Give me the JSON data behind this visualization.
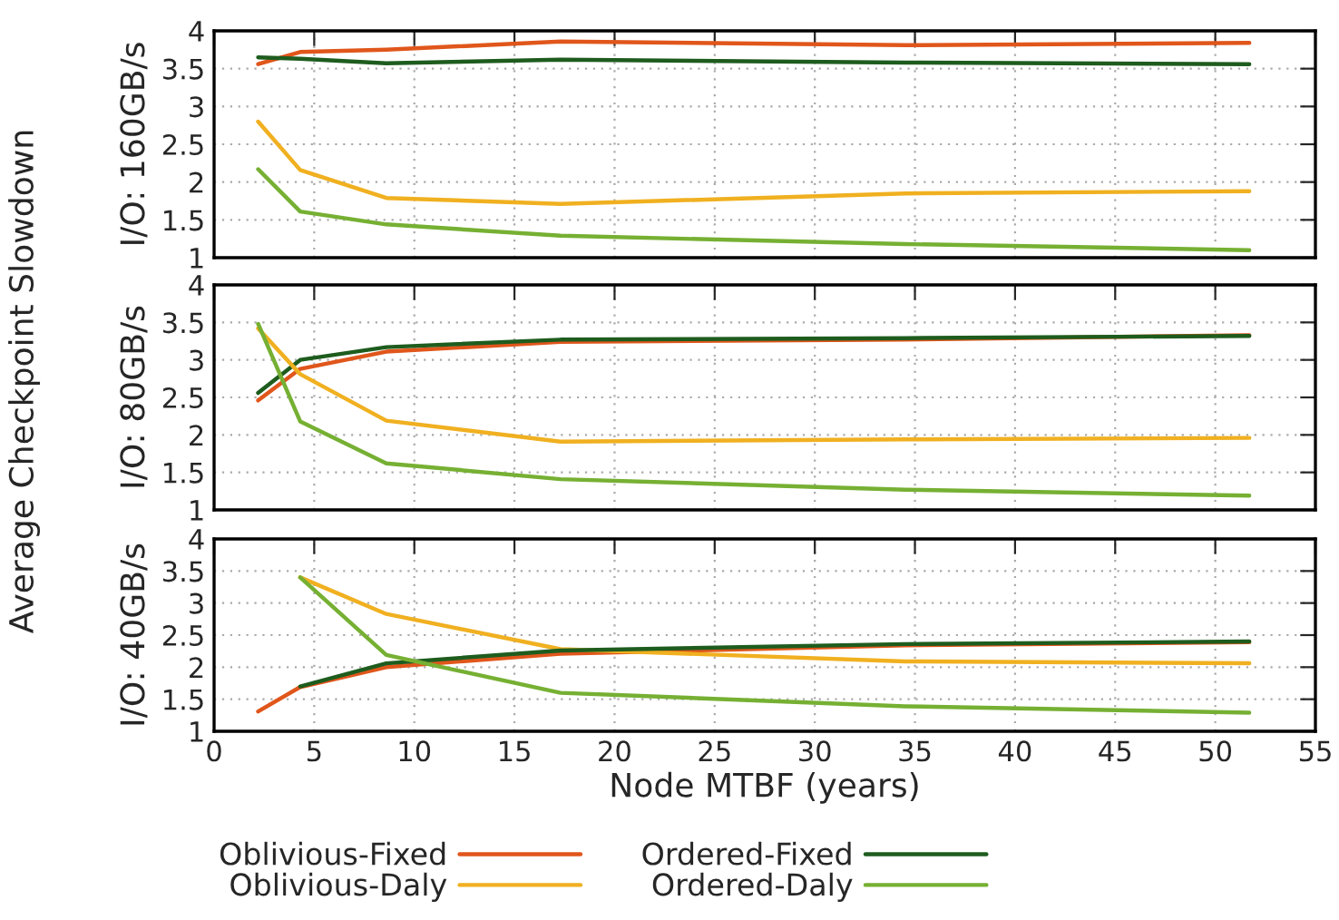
{
  "chart_data": [
    {
      "type": "line",
      "ylabel": "I/O: 160GB/s",
      "annotations": [
        "Average Checkpoint Slowdown"
      ],
      "x": [
        2.2,
        4.3,
        8.6,
        17.3,
        34.5,
        51.7
      ],
      "xlim": [
        0,
        55
      ],
      "xticks": [
        0,
        5,
        10,
        15,
        20,
        25,
        30,
        35,
        40,
        45,
        50,
        55
      ],
      "ylim": [
        1,
        4
      ],
      "yticks": [
        1,
        1.5,
        2,
        2.5,
        3,
        3.5,
        4
      ],
      "grid": true,
      "tick_labels": "y",
      "line_style": "solid",
      "series": [
        {
          "color": "#e0561b",
          "values": [
            3.56,
            3.72,
            3.75,
            3.86,
            3.81,
            3.84
          ]
        },
        {
          "color": "#1e5c1e",
          "values": [
            3.65,
            3.63,
            3.57,
            3.62,
            3.58,
            3.56
          ]
        },
        {
          "color": "#f0b020",
          "values": [
            2.8,
            2.16,
            1.79,
            1.71,
            1.85,
            1.88
          ]
        },
        {
          "color": "#76b033",
          "values": [
            2.17,
            1.61,
            1.44,
            1.29,
            1.18,
            1.1
          ]
        }
      ]
    },
    {
      "type": "line",
      "ylabel": "I/O: 80GB/s",
      "x": [
        2.2,
        4.3,
        8.6,
        17.3,
        34.5,
        51.7
      ],
      "xlim": [
        0,
        55
      ],
      "xticks": [
        0,
        5,
        10,
        15,
        20,
        25,
        30,
        35,
        40,
        45,
        50,
        55
      ],
      "ylim": [
        1,
        4
      ],
      "yticks": [
        1,
        1.5,
        2,
        2.5,
        3,
        3.5,
        4
      ],
      "grid": true,
      "tick_labels": "y",
      "line_style": "solid",
      "series": [
        {
          "color": "#e0561b",
          "values": [
            2.46,
            2.88,
            3.11,
            3.24,
            3.27,
            3.33
          ]
        },
        {
          "color": "#1e5c1e",
          "values": [
            2.56,
            3.0,
            3.17,
            3.27,
            3.29,
            3.32
          ]
        },
        {
          "color": "#f0b020",
          "values": [
            3.42,
            2.81,
            2.19,
            1.91,
            1.94,
            1.96
          ]
        },
        {
          "color": "#76b033",
          "values": [
            3.48,
            2.18,
            1.62,
            1.41,
            1.27,
            1.19
          ]
        }
      ]
    },
    {
      "type": "line",
      "ylabel": "I/O: 40GB/s",
      "xlabel": "Node MTBF (years)",
      "x": [
        2.2,
        4.3,
        8.6,
        17.3,
        34.5,
        51.7
      ],
      "xlim": [
        0,
        55
      ],
      "xticks": [
        0,
        5,
        10,
        15,
        20,
        25,
        30,
        35,
        40,
        45,
        50,
        55
      ],
      "ylim": [
        1,
        4
      ],
      "yticks": [
        1,
        1.5,
        2,
        2.5,
        3,
        3.5,
        4
      ],
      "grid": true,
      "legend": "bottom",
      "line_style": "solid",
      "series": [
        {
          "name": "Oblivious-Fixed",
          "color": "#e0561b",
          "values": [
            1.31,
            1.69,
            2.0,
            2.21,
            2.34,
            2.39
          ]
        },
        {
          "name": "Oblivious-Daly",
          "color": "#f0b020",
          "values": [
            null,
            3.4,
            2.83,
            2.28,
            2.09,
            2.06
          ]
        },
        {
          "name": "Ordered-Fixed",
          "color": "#1e5c1e",
          "values": [
            null,
            1.7,
            2.06,
            2.26,
            2.36,
            2.4
          ]
        },
        {
          "name": "Ordered-Daly",
          "color": "#76b033",
          "values": [
            null,
            3.4,
            2.19,
            1.6,
            1.39,
            1.29
          ]
        }
      ]
    }
  ]
}
